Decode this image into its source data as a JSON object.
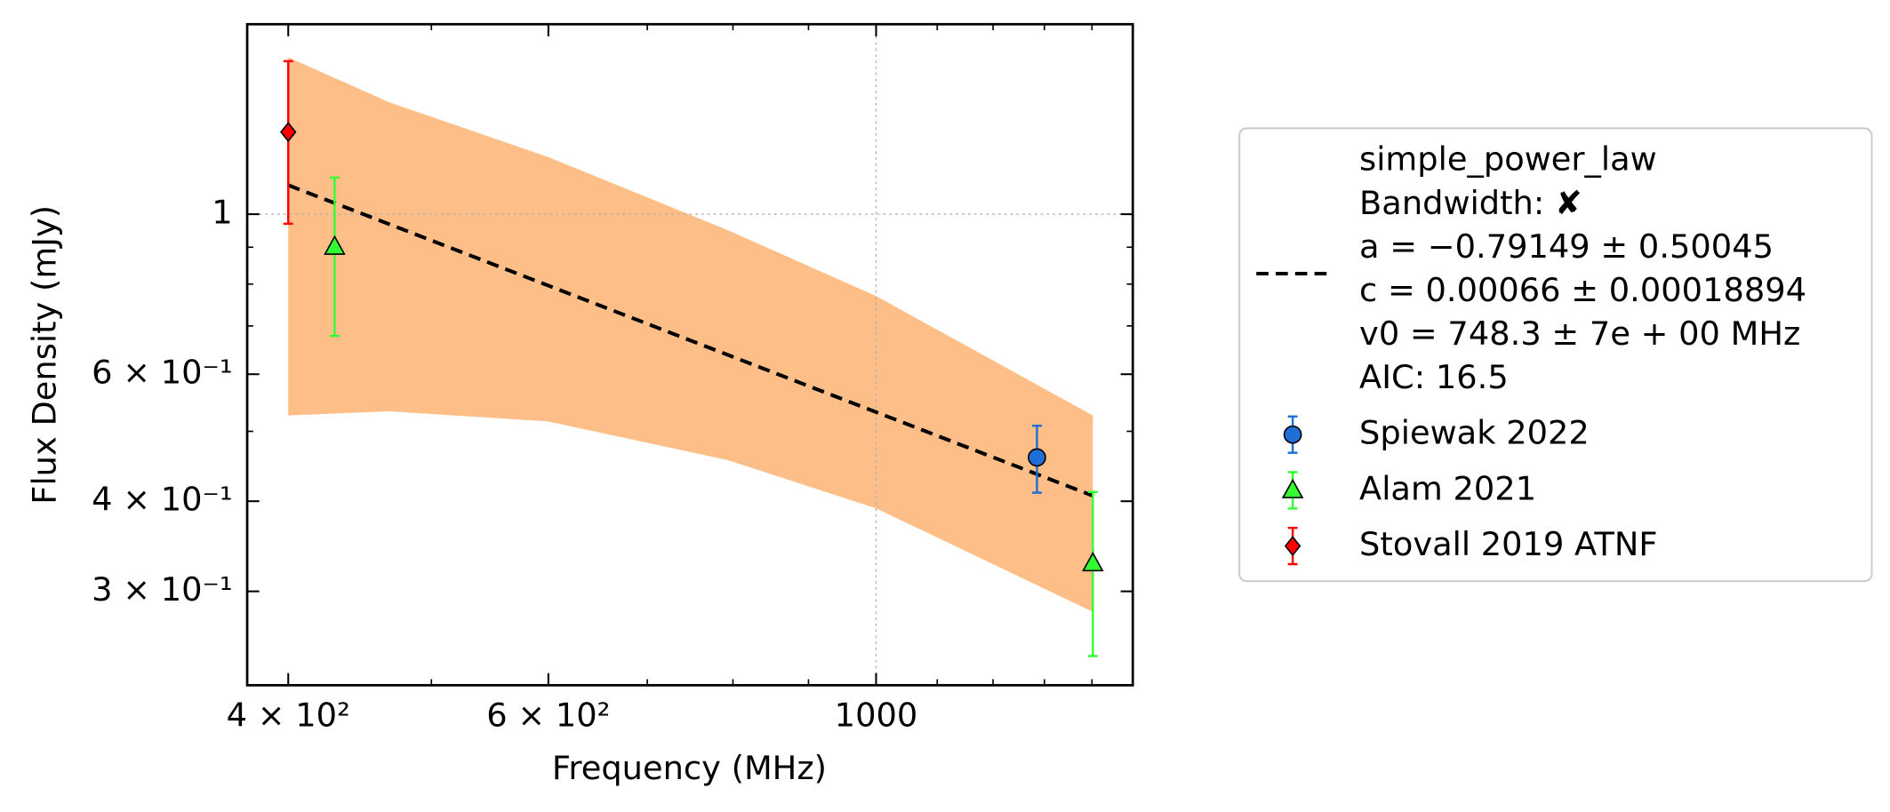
{
  "chart_data": {
    "type": "scatter",
    "xlabel": "Frequency (MHz)",
    "ylabel": "Flux Density (mJy)",
    "xscale": "log",
    "yscale": "log",
    "xlim": [
      375.2,
      1492
    ],
    "ylim": [
      0.2223,
      1.834
    ],
    "xticks": [
      {
        "value": 400,
        "label": "4 × 10²"
      },
      {
        "value": 600,
        "label": "6 × 10²"
      },
      1000
    ],
    "xminor": [
      500,
      700,
      800,
      900,
      1100,
      1200,
      1300,
      1400
    ],
    "yticks": [
      {
        "value": 0.3,
        "label": "3 × 10⁻¹"
      },
      {
        "value": 0.4,
        "label": "4 × 10⁻¹"
      },
      {
        "value": 0.6,
        "label": "6 × 10⁻¹"
      },
      1
    ],
    "yminor": [
      0.5,
      0.7,
      0.8,
      0.9
    ],
    "grid": true,
    "legend": "outside right",
    "fit": {
      "label_lines": [
        "simple_power_law",
        "Bandwidth: ✘",
        "a = −0.79149 ± 0.50045",
        "c = 0.00066 ± 0.00018894",
        "v0 = 748.3 ± 7e + 00 MHz",
        "AIC: 16.5"
      ],
      "color": "#000000",
      "x": [
        400,
        1402
      ],
      "values": [
        1.097,
        0.407
      ],
      "band": {
        "color": "#fdbf87",
        "x": [
          400,
          468,
          600,
          794,
          1000,
          1402
        ],
        "upper": [
          1.65,
          1.43,
          1.2,
          0.95,
          0.77,
          0.526
        ],
        "lower": [
          0.526,
          0.533,
          0.516,
          0.456,
          0.391,
          0.281
        ]
      }
    },
    "series": [
      {
        "name": "Spiewak 2022",
        "color": "#1f6fd6",
        "marker": "circle",
        "x": [
          1285
        ],
        "values": [
          0.46
        ],
        "errors": [
          0.049
        ]
      },
      {
        "name": "Alam 2021",
        "color": "#33ff33",
        "marker": "triangle",
        "x": [
          430,
          1402
        ],
        "values": [
          0.901,
          0.328
        ],
        "errors": [
          0.223,
          0.084
        ]
      },
      {
        "name": "Stovall 2019 ATNF",
        "color": "#ff0000",
        "marker": "diamond",
        "x": [
          400
        ],
        "values": [
          1.3
        ],
        "errors": [
          0.33
        ]
      }
    ]
  }
}
